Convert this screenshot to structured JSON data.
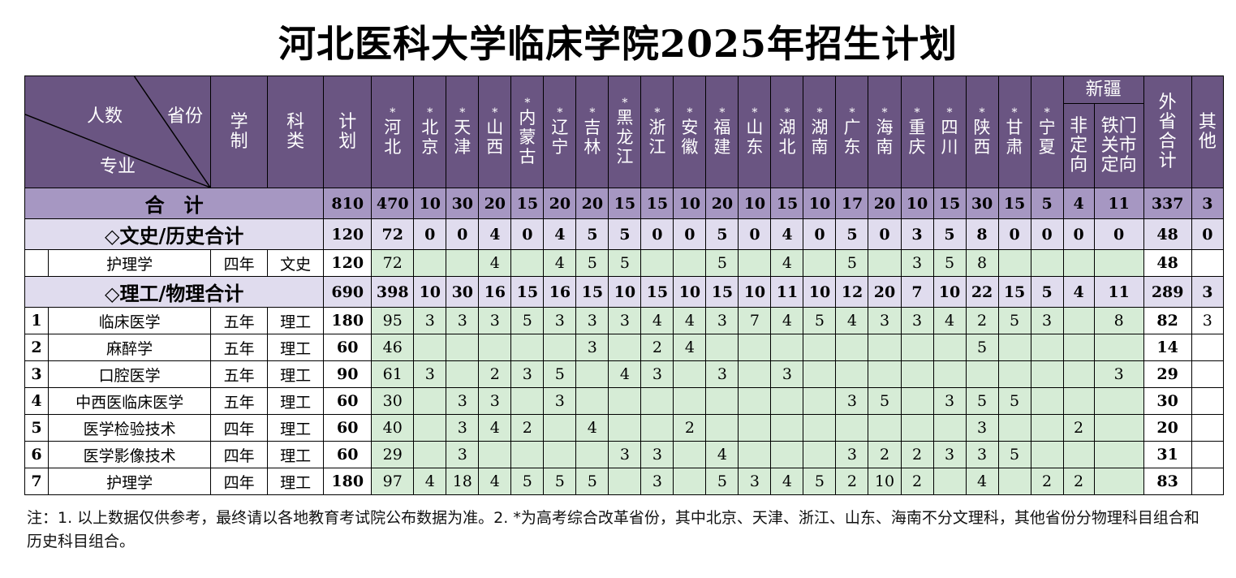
{
  "title": "河北医科大学临床学院2025年招生计划",
  "header": {
    "diag_people": "人数",
    "diag_province": "省份",
    "diag_major": "专业",
    "xuezhi": "学制",
    "kelei": "科类",
    "jihua": "计划",
    "star": "*",
    "xinjiang": "新疆",
    "xj_cols": [
      "非定向",
      "铁门关市定向"
    ],
    "waisheng": "外省合计",
    "qita": "其他",
    "provinces": [
      {
        "name": "河北",
        "star": true
      },
      {
        "name": "北京",
        "star": true
      },
      {
        "name": "天津",
        "star": true
      },
      {
        "name": "山西",
        "star": true
      },
      {
        "name": "内蒙古",
        "star": true
      },
      {
        "name": "辽宁",
        "star": true
      },
      {
        "name": "吉林",
        "star": true
      },
      {
        "name": "黑龙江",
        "star": true
      },
      {
        "name": "浙江",
        "star": true
      },
      {
        "name": "安徽",
        "star": true
      },
      {
        "name": "福建",
        "star": true
      },
      {
        "name": "山东",
        "star": true
      },
      {
        "name": "湖北",
        "star": true
      },
      {
        "name": "湖南",
        "star": true
      },
      {
        "name": "广东",
        "star": true
      },
      {
        "name": "海南",
        "star": true
      },
      {
        "name": "重庆",
        "star": true
      },
      {
        "name": "四川",
        "star": true
      },
      {
        "name": "陕西",
        "star": true
      },
      {
        "name": "甘肃",
        "star": true
      },
      {
        "name": "宁夏",
        "star": true
      }
    ]
  },
  "total": {
    "label": "合　计",
    "plan": "810",
    "values": [
      "470",
      "10",
      "30",
      "20",
      "15",
      "20",
      "20",
      "15",
      "15",
      "10",
      "20",
      "10",
      "15",
      "10",
      "17",
      "20",
      "10",
      "15",
      "30",
      "15",
      "5",
      "4",
      "11"
    ],
    "waisheng": "337",
    "qita": "3"
  },
  "wenshi": {
    "label": "◇文史/历史合计",
    "plan": "120",
    "values": [
      "72",
      "0",
      "0",
      "4",
      "0",
      "4",
      "5",
      "5",
      "0",
      "0",
      "5",
      "0",
      "4",
      "0",
      "5",
      "0",
      "3",
      "5",
      "8",
      "0",
      "0",
      "0",
      "0"
    ],
    "waisheng": "48",
    "qita": "0",
    "rows": [
      {
        "idx": "",
        "name": "护理学",
        "sys": "四年",
        "cat": "文史",
        "plan": "120",
        "values": [
          "72",
          "",
          "",
          "4",
          "",
          "4",
          "5",
          "5",
          "",
          "",
          "5",
          "",
          "4",
          "",
          "5",
          "",
          "3",
          "5",
          "8",
          "",
          "",
          "",
          ""
        ],
        "waisheng": "48",
        "qita": ""
      }
    ]
  },
  "ligong": {
    "label": "◇理工/物理合计",
    "plan": "690",
    "values": [
      "398",
      "10",
      "30",
      "16",
      "15",
      "16",
      "15",
      "10",
      "15",
      "10",
      "15",
      "10",
      "11",
      "10",
      "12",
      "20",
      "7",
      "10",
      "22",
      "15",
      "5",
      "4",
      "11"
    ],
    "waisheng": "289",
    "qita": "3",
    "rows": [
      {
        "idx": "1",
        "name": "临床医学",
        "sys": "五年",
        "cat": "理工",
        "plan": "180",
        "values": [
          "95",
          "3",
          "3",
          "3",
          "5",
          "3",
          "3",
          "3",
          "4",
          "4",
          "3",
          "7",
          "4",
          "5",
          "4",
          "3",
          "3",
          "4",
          "2",
          "5",
          "3",
          "",
          "8"
        ],
        "waisheng": "82",
        "qita": "3"
      },
      {
        "idx": "2",
        "name": "麻醉学",
        "sys": "五年",
        "cat": "理工",
        "plan": "60",
        "values": [
          "46",
          "",
          "",
          "",
          "",
          "",
          "3",
          "",
          "2",
          "4",
          "",
          "",
          "",
          "",
          "",
          "",
          "",
          "",
          "5",
          "",
          "",
          "",
          ""
        ],
        "waisheng": "14",
        "qita": ""
      },
      {
        "idx": "3",
        "name": "口腔医学",
        "sys": "五年",
        "cat": "理工",
        "plan": "90",
        "values": [
          "61",
          "3",
          "",
          "2",
          "3",
          "5",
          "",
          "4",
          "3",
          "",
          "3",
          "",
          "3",
          "",
          "",
          "",
          "",
          "",
          "",
          "",
          "",
          "",
          "3"
        ],
        "waisheng": "29",
        "qita": ""
      },
      {
        "idx": "4",
        "name": "中西医临床医学",
        "sys": "五年",
        "cat": "理工",
        "plan": "60",
        "values": [
          "30",
          "",
          "3",
          "3",
          "",
          "3",
          "",
          "",
          "",
          "",
          "",
          "",
          "",
          "",
          "3",
          "5",
          "",
          "3",
          "5",
          "5",
          "",
          "",
          ""
        ],
        "waisheng": "30",
        "qita": ""
      },
      {
        "idx": "5",
        "name": "医学检验技术",
        "sys": "四年",
        "cat": "理工",
        "plan": "60",
        "values": [
          "40",
          "",
          "3",
          "4",
          "2",
          "",
          "4",
          "",
          "",
          "2",
          "",
          "",
          "",
          "",
          "",
          "",
          "",
          "",
          "3",
          "",
          "",
          "2",
          ""
        ],
        "waisheng": "20",
        "qita": ""
      },
      {
        "idx": "6",
        "name": "医学影像技术",
        "sys": "四年",
        "cat": "理工",
        "plan": "60",
        "values": [
          "29",
          "",
          "3",
          "",
          "",
          "",
          "",
          "3",
          "3",
          "",
          "4",
          "",
          "",
          "",
          "3",
          "2",
          "2",
          "3",
          "3",
          "5",
          "",
          "",
          ""
        ],
        "waisheng": "31",
        "qita": ""
      },
      {
        "idx": "7",
        "name": "护理学",
        "sys": "四年",
        "cat": "理工",
        "plan": "180",
        "values": [
          "97",
          "4",
          "18",
          "4",
          "5",
          "5",
          "5",
          "",
          "3",
          "",
          "5",
          "3",
          "4",
          "5",
          "2",
          "10",
          "2",
          "",
          "4",
          "",
          "2",
          "2",
          ""
        ],
        "waisheng": "83",
        "qita": ""
      }
    ]
  },
  "note": "注：1. 以上数据仅供参考，最终请以各地教育考试院公布数据为准。2. *为高考综合改革省份，其中北京、天津、浙江、山东、海南不分文理科，其他省份分物理科目组合和历史科目组合。"
}
